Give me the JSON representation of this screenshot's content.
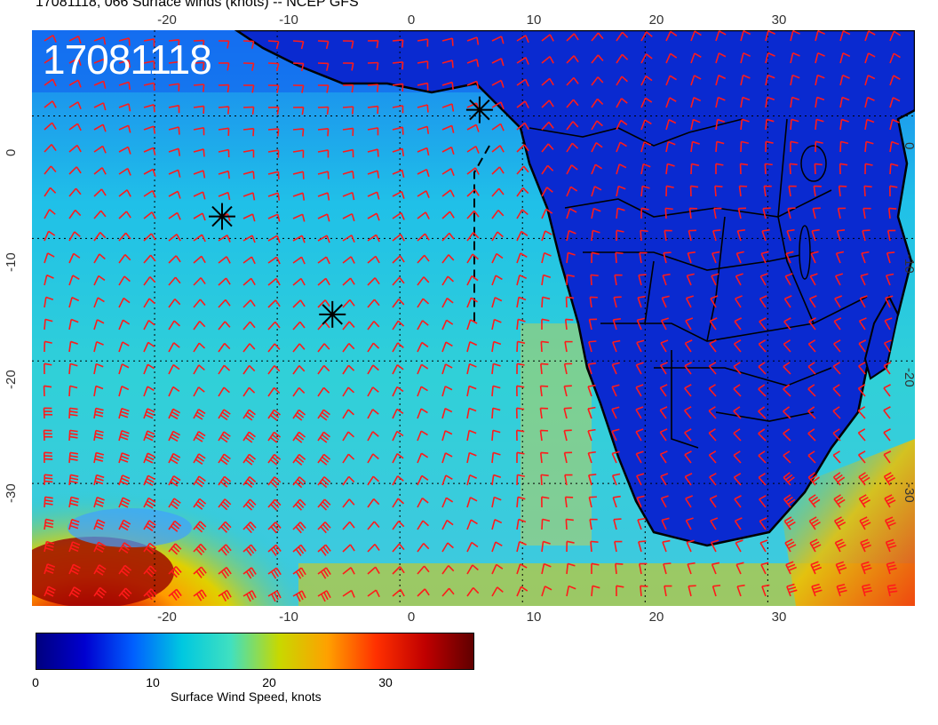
{
  "title": "17081118, 066 Surface winds (knots) -- NCEP GFS",
  "stamp": "17081118",
  "axes": {
    "top_ticks": [
      "-20",
      "-10",
      "0",
      "10",
      "20",
      "30"
    ],
    "bottom_ticks": [
      "-20",
      "-10",
      "0",
      "10",
      "20",
      "30"
    ],
    "left_ticks": [
      "0",
      "-10",
      "-20",
      "-30"
    ],
    "right_ticks": [
      "0",
      "-10",
      "-20",
      "-30"
    ],
    "lon_range": [
      -30,
      42
    ],
    "lat_range": [
      -40,
      7
    ]
  },
  "colorbar": {
    "title": "Surface Wind Speed, knots",
    "labels": [
      "0",
      "10",
      "20",
      "30"
    ],
    "range": [
      0,
      37
    ],
    "colors": [
      "#00007f",
      "#0000d0",
      "#0060ff",
      "#00c8e0",
      "#40e0c0",
      "#c8d800",
      "#ffa000",
      "#ff3000",
      "#c00000",
      "#600000"
    ]
  },
  "colors": {
    "barb": "#ff1a1a",
    "coast": "#000000",
    "land": "#0a2ad0",
    "ocean": "#20b0e8"
  },
  "markers": [
    {
      "name": "storm-marker-1",
      "lon": 6.5,
      "lat": 0.5
    },
    {
      "name": "storm-marker-2",
      "lon": -14.5,
      "lat": -8.2
    },
    {
      "name": "storm-marker-3",
      "lon": -5.5,
      "lat": -16.2
    }
  ]
}
